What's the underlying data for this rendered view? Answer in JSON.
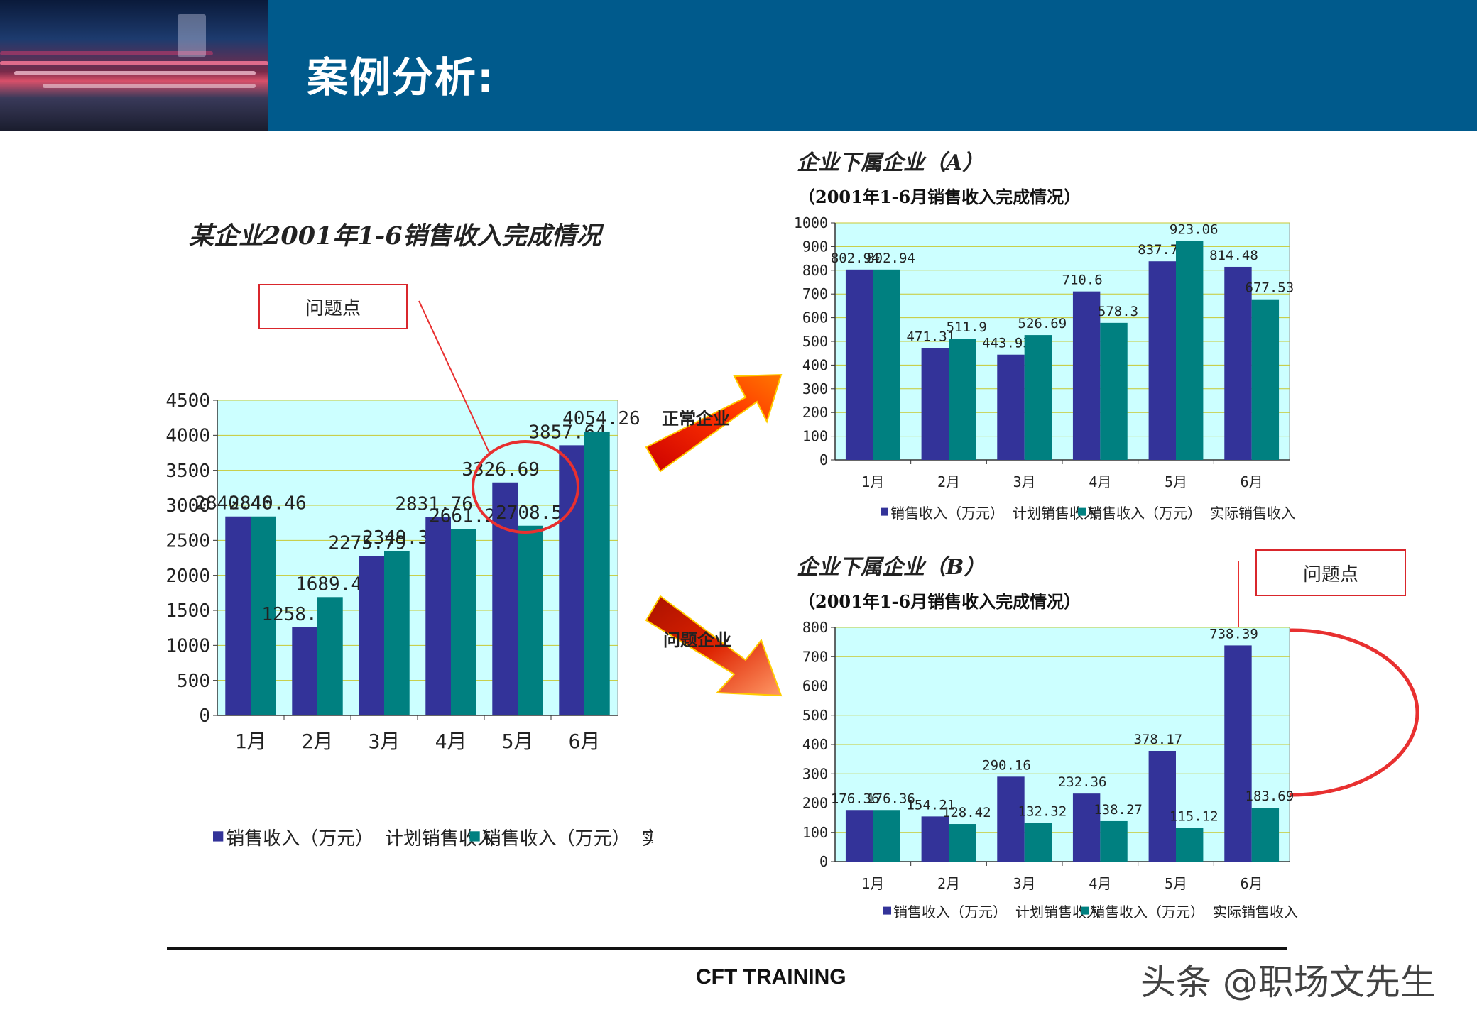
{
  "header": {
    "title": "案例分析:"
  },
  "left_chart_title": "某企业2001年1-6销售收入完成情况",
  "chart_a_title": "企业下属企业（A）",
  "chart_a_subtitle": "（2001年1-6月销售收入完成情况）",
  "chart_b_title": "企业下属企业（B）",
  "chart_b_subtitle": "（2001年1-6月销售收入完成情况）",
  "issue_label_left": "问题点",
  "issue_label_right": "问题点",
  "arrow_normal_label": "正常企业",
  "arrow_problem_label": "问题企业",
  "footer": {
    "text": "CFT TRAINING"
  },
  "watermark": "头条 @职场文先生",
  "colors": {
    "plan": "#333399",
    "actual": "#008080",
    "plot_bg": "#ccffff",
    "grid": "#c8c832",
    "highlight": "#e83030",
    "header_bg": "#005a8c"
  },
  "chart_data": [
    {
      "id": "overall",
      "type": "bar",
      "title": "某企业2001年1-6销售收入完成情况",
      "categories": [
        "1月",
        "2月",
        "3月",
        "4月",
        "5月",
        "6月"
      ],
      "series": [
        {
          "name": "销售收入（万元） 计划销售收入",
          "values": [
            2840.46,
            1258.04,
            2275.79,
            2831.76,
            3326.69,
            3857.64
          ],
          "labels": [
            "2840.46",
            "1258.04",
            "2275.79",
            "2831.76",
            "3326.69",
            "3857.64"
          ]
        },
        {
          "name": "销售收入（万元） 实际销售收入",
          "values": [
            2840.46,
            1689.47,
            2349.39,
            2661.28,
            2708.59,
            4054.26
          ],
          "labels": [
            "2840.46",
            "1689.47",
            "2349.39",
            "2661.28",
            "2708.59",
            "4054.26"
          ]
        }
      ],
      "ylim": [
        0,
        4500
      ],
      "yticks": [
        "0",
        "500",
        "1000",
        "1500",
        "2000",
        "2500",
        "3000",
        "3500",
        "4000",
        "4500"
      ]
    },
    {
      "id": "A",
      "type": "bar",
      "title": "企业下属企业（A）",
      "categories": [
        "1月",
        "2月",
        "3月",
        "4月",
        "5月",
        "6月"
      ],
      "series": [
        {
          "name": "销售收入（万元） 计划销售收入",
          "values": [
            802.94,
            471.31,
            443.93,
            710.6,
            837.7,
            814.48
          ],
          "labels": [
            "802.94",
            "471.31",
            "443.93",
            "710.6",
            "837.7",
            "814.48"
          ]
        },
        {
          "name": "销售收入（万元） 实际销售收入",
          "values": [
            802.94,
            511.9,
            526.69,
            578.3,
            923.06,
            677.53
          ],
          "labels": [
            "802.94",
            "511.9",
            "526.69",
            "578.3",
            "923.06",
            "677.53"
          ]
        }
      ],
      "ylim": [
        0,
        1000
      ],
      "yticks": [
        "0",
        "100",
        "200",
        "300",
        "400",
        "500",
        "600",
        "700",
        "800",
        "900",
        "1000"
      ]
    },
    {
      "id": "B",
      "type": "bar",
      "title": "企业下属企业（B）",
      "categories": [
        "1月",
        "2月",
        "3月",
        "4月",
        "5月",
        "6月"
      ],
      "series": [
        {
          "name": "销售收入（万元） 计划销售收入",
          "values": [
            176.36,
            154.21,
            290.16,
            232.36,
            378.17,
            738.39
          ],
          "labels": [
            "176.36",
            "154.21",
            "290.16",
            "232.36",
            "378.17",
            "738.39"
          ]
        },
        {
          "name": "销售收入（万元） 实际销售收入",
          "values": [
            176.36,
            128.42,
            132.32,
            138.27,
            115.12,
            183.69
          ],
          "labels": [
            "176.36",
            "128.42",
            "132.32",
            "138.27",
            "115.12",
            "183.69"
          ]
        }
      ],
      "ylim": [
        0,
        800
      ],
      "yticks": [
        "0",
        "100",
        "200",
        "300",
        "400",
        "500",
        "600",
        "700",
        "800"
      ]
    }
  ]
}
